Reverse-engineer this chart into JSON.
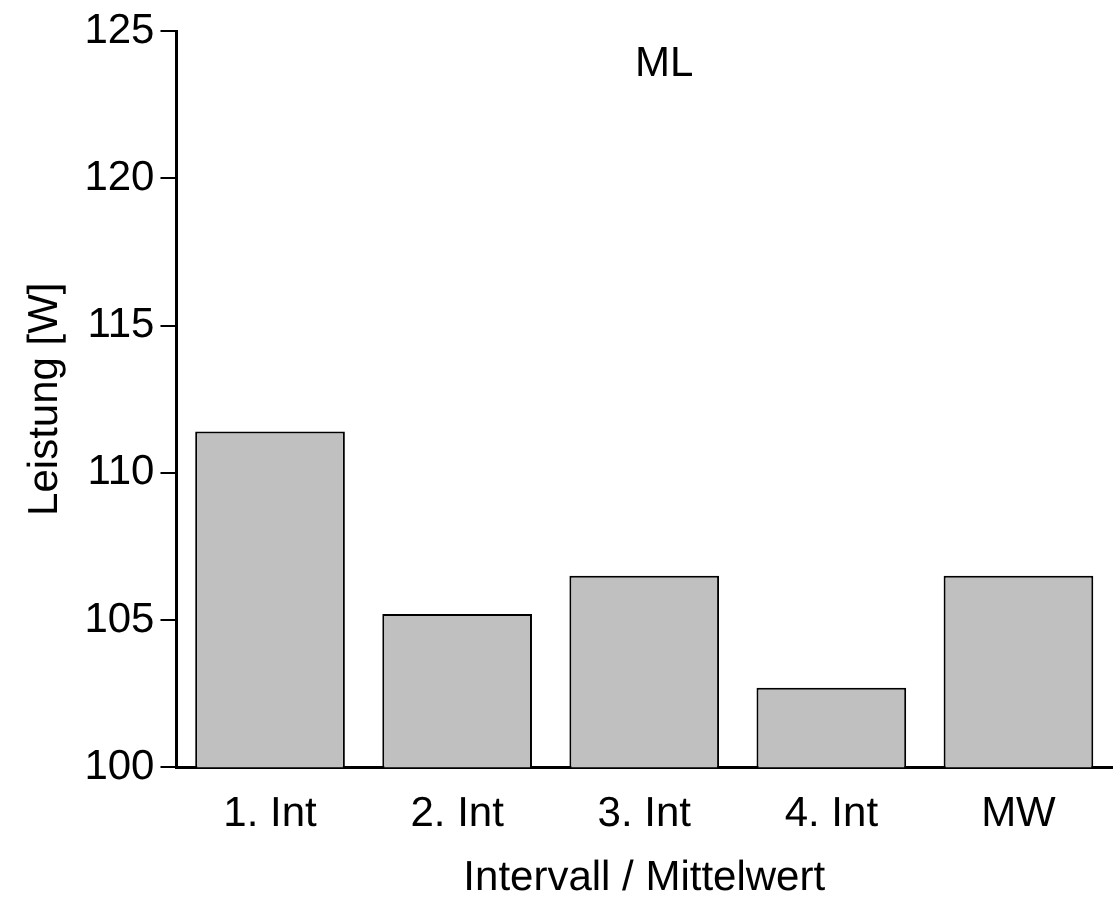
{
  "chart_data": {
    "type": "bar",
    "title": "ML",
    "xlabel": "Intervall / Mittelwert",
    "ylabel": "Leistung [W]",
    "categories": [
      "1. Int",
      "2. Int",
      "3. Int",
      "4. Int",
      "MW"
    ],
    "values": [
      111.4,
      105.2,
      106.5,
      102.7,
      106.5
    ],
    "color": "#c0c0c0",
    "ylim": [
      100,
      125
    ],
    "yticks": [
      100,
      105,
      110,
      115,
      120,
      125
    ],
    "grid": false,
    "legend": false
  }
}
